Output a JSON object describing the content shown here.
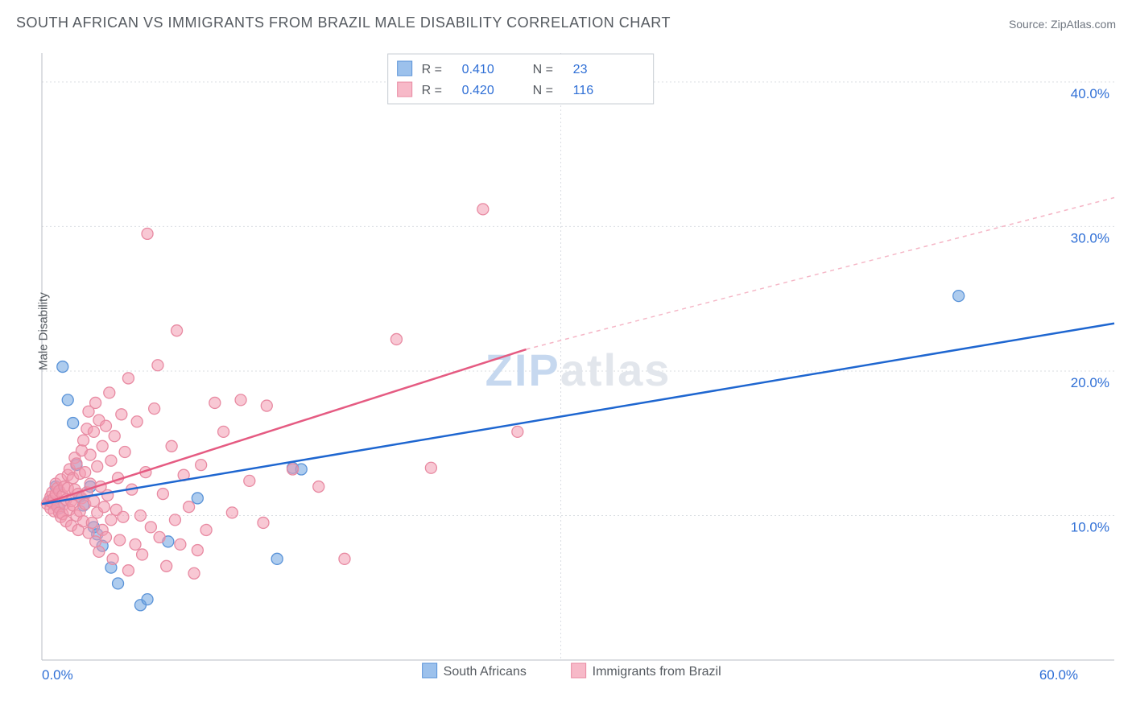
{
  "title": "SOUTH AFRICAN VS IMMIGRANTS FROM BRAZIL MALE DISABILITY CORRELATION CHART",
  "source": "Source: ZipAtlas.com",
  "y_axis_label": "Male Disability",
  "watermark": {
    "zip": "ZIP",
    "atlas": "atlas"
  },
  "chart": {
    "type": "scatter",
    "background_color": "#ffffff",
    "grid_color": "#d9dde2",
    "axis_color": "#b9bec5",
    "tick_color": "#2f6fd6",
    "xlim": [
      0,
      62
    ],
    "ylim": [
      0,
      42
    ],
    "x_ticks": [
      {
        "v": 0,
        "label": "0.0%"
      },
      {
        "v": 60,
        "label": "60.0%"
      }
    ],
    "y_ticks": [
      {
        "v": 10,
        "label": "10.0%"
      },
      {
        "v": 20,
        "label": "20.0%"
      },
      {
        "v": 30,
        "label": "30.0%"
      },
      {
        "v": 40,
        "label": "40.0%"
      }
    ],
    "legend_top": {
      "rows": [
        {
          "swatch_fill": "#9cc1ec",
          "swatch_stroke": "#5a93d8",
          "r_label": "R =",
          "r_value": "0.410",
          "n_label": "N =",
          "n_value": "23"
        },
        {
          "swatch_fill": "#f7b9c8",
          "swatch_stroke": "#e88aa2",
          "r_label": "R =",
          "r_value": "0.420",
          "n_label": "N =",
          "n_value": "116"
        }
      ]
    },
    "legend_bottom": {
      "items": [
        {
          "swatch_fill": "#9cc1ec",
          "swatch_stroke": "#5a93d8",
          "label": "South Africans"
        },
        {
          "swatch_fill": "#f7b9c8",
          "swatch_stroke": "#e88aa2",
          "label": "Immigrants from Brazil"
        }
      ]
    },
    "series": [
      {
        "name": "South Africans",
        "color_fill": "rgba(107,162,224,0.55)",
        "color_stroke": "#5a93d8",
        "marker_radius": 7,
        "trend": {
          "x1": 0,
          "y1": 10.8,
          "x2": 62,
          "y2": 23.3,
          "color": "#1e66d0",
          "width": 2.5,
          "dash": ""
        },
        "points": [
          [
            0.5,
            11.0
          ],
          [
            0.8,
            12.0
          ],
          [
            1.0,
            10.5
          ],
          [
            1.2,
            20.3
          ],
          [
            1.5,
            18.0
          ],
          [
            1.8,
            16.4
          ],
          [
            2.0,
            13.5
          ],
          [
            2.2,
            11.3
          ],
          [
            2.4,
            10.7
          ],
          [
            2.8,
            12.0
          ],
          [
            3.0,
            9.2
          ],
          [
            3.2,
            8.7
          ],
          [
            3.5,
            7.9
          ],
          [
            4.0,
            6.4
          ],
          [
            4.4,
            5.3
          ],
          [
            5.7,
            3.8
          ],
          [
            6.1,
            4.2
          ],
          [
            7.3,
            8.2
          ],
          [
            9.0,
            11.2
          ],
          [
            13.6,
            7.0
          ],
          [
            14.5,
            13.3
          ],
          [
            15.0,
            13.2
          ],
          [
            53.0,
            25.2
          ]
        ]
      },
      {
        "name": "Immigrants from Brazil",
        "color_fill": "rgba(243,154,177,0.55)",
        "color_stroke": "#e88aa2",
        "marker_radius": 7,
        "trend_solid": {
          "x1": 0,
          "y1": 10.8,
          "x2": 28,
          "y2": 21.5,
          "color": "#e55b82",
          "width": 2.5,
          "dash": ""
        },
        "trend_dash": {
          "x1": 28,
          "y1": 21.5,
          "x2": 62,
          "y2": 32.0,
          "color": "#f5b6c6",
          "width": 1.5,
          "dash": "5 5"
        },
        "points": [
          [
            0.3,
            10.8
          ],
          [
            0.4,
            11.0
          ],
          [
            0.5,
            10.5
          ],
          [
            0.5,
            11.3
          ],
          [
            0.6,
            10.9
          ],
          [
            0.6,
            11.6
          ],
          [
            0.7,
            11.2
          ],
          [
            0.7,
            10.3
          ],
          [
            0.8,
            11.5
          ],
          [
            0.8,
            12.2
          ],
          [
            0.9,
            10.6
          ],
          [
            0.9,
            11.9
          ],
          [
            1.0,
            10.2
          ],
          [
            1.0,
            11.7
          ],
          [
            1.1,
            12.5
          ],
          [
            1.1,
            9.9
          ],
          [
            1.2,
            11.4
          ],
          [
            1.2,
            10.1
          ],
          [
            1.3,
            12.0
          ],
          [
            1.3,
            10.8
          ],
          [
            1.4,
            11.1
          ],
          [
            1.4,
            9.6
          ],
          [
            1.5,
            11.9
          ],
          [
            1.5,
            12.8
          ],
          [
            1.6,
            10.4
          ],
          [
            1.6,
            13.2
          ],
          [
            1.7,
            11.0
          ],
          [
            1.7,
            9.3
          ],
          [
            1.8,
            12.6
          ],
          [
            1.8,
            10.7
          ],
          [
            1.9,
            11.8
          ],
          [
            1.9,
            14.0
          ],
          [
            2.0,
            10.0
          ],
          [
            2.0,
            13.6
          ],
          [
            2.1,
            11.5
          ],
          [
            2.1,
            9.0
          ],
          [
            2.2,
            12.9
          ],
          [
            2.2,
            10.3
          ],
          [
            2.3,
            14.5
          ],
          [
            2.3,
            11.2
          ],
          [
            2.4,
            15.2
          ],
          [
            2.4,
            9.6
          ],
          [
            2.5,
            13.0
          ],
          [
            2.5,
            10.8
          ],
          [
            2.6,
            16.0
          ],
          [
            2.6,
            11.6
          ],
          [
            2.7,
            17.2
          ],
          [
            2.7,
            8.8
          ],
          [
            2.8,
            14.2
          ],
          [
            2.8,
            12.2
          ],
          [
            2.9,
            9.5
          ],
          [
            3.0,
            15.8
          ],
          [
            3.0,
            11.0
          ],
          [
            3.1,
            17.8
          ],
          [
            3.1,
            8.2
          ],
          [
            3.2,
            13.4
          ],
          [
            3.2,
            10.2
          ],
          [
            3.3,
            16.6
          ],
          [
            3.3,
            7.5
          ],
          [
            3.4,
            12.0
          ],
          [
            3.5,
            14.8
          ],
          [
            3.5,
            9.0
          ],
          [
            3.6,
            10.6
          ],
          [
            3.7,
            16.2
          ],
          [
            3.7,
            8.5
          ],
          [
            3.8,
            11.4
          ],
          [
            3.9,
            18.5
          ],
          [
            4.0,
            9.7
          ],
          [
            4.0,
            13.8
          ],
          [
            4.1,
            7.0
          ],
          [
            4.2,
            15.5
          ],
          [
            4.3,
            10.4
          ],
          [
            4.4,
            12.6
          ],
          [
            4.5,
            8.3
          ],
          [
            4.6,
            17.0
          ],
          [
            4.7,
            9.9
          ],
          [
            4.8,
            14.4
          ],
          [
            5.0,
            6.2
          ],
          [
            5.0,
            19.5
          ],
          [
            5.2,
            11.8
          ],
          [
            5.4,
            8.0
          ],
          [
            5.5,
            16.5
          ],
          [
            5.7,
            10.0
          ],
          [
            5.8,
            7.3
          ],
          [
            6.0,
            13.0
          ],
          [
            6.1,
            29.5
          ],
          [
            6.3,
            9.2
          ],
          [
            6.5,
            17.4
          ],
          [
            6.7,
            20.4
          ],
          [
            6.8,
            8.5
          ],
          [
            7.0,
            11.5
          ],
          [
            7.2,
            6.5
          ],
          [
            7.5,
            14.8
          ],
          [
            7.7,
            9.7
          ],
          [
            7.8,
            22.8
          ],
          [
            8.0,
            8.0
          ],
          [
            8.2,
            12.8
          ],
          [
            8.5,
            10.6
          ],
          [
            8.8,
            6.0
          ],
          [
            9.0,
            7.6
          ],
          [
            9.2,
            13.5
          ],
          [
            9.5,
            9.0
          ],
          [
            10.0,
            17.8
          ],
          [
            10.5,
            15.8
          ],
          [
            11.0,
            10.2
          ],
          [
            11.5,
            18.0
          ],
          [
            12.0,
            12.4
          ],
          [
            12.8,
            9.5
          ],
          [
            13.0,
            17.6
          ],
          [
            14.5,
            13.2
          ],
          [
            16.0,
            12.0
          ],
          [
            17.5,
            7.0
          ],
          [
            20.5,
            22.2
          ],
          [
            22.5,
            13.3
          ],
          [
            25.5,
            31.2
          ],
          [
            27.5,
            15.8
          ]
        ]
      }
    ]
  }
}
